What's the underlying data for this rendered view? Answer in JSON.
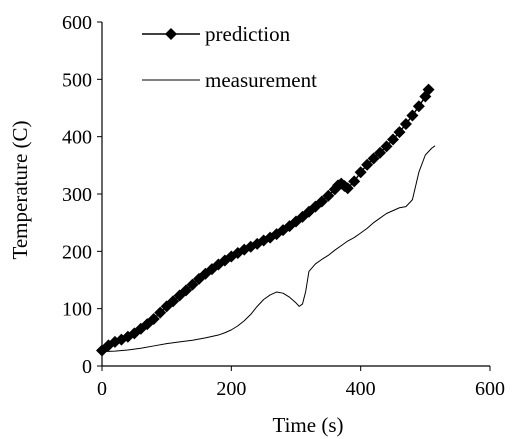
{
  "chart_data": {
    "type": "line",
    "title": "",
    "xlabel": "Time (s)",
    "ylabel": "Temperature (C)",
    "xlim": [
      0,
      600
    ],
    "ylim": [
      0,
      600
    ],
    "xticks": [
      0,
      200,
      400,
      600
    ],
    "yticks": [
      0,
      100,
      200,
      300,
      400,
      500,
      600
    ],
    "grid": false,
    "legend_position": "top-left",
    "series": [
      {
        "name": "prediction",
        "marker": "diamond",
        "color": "#000000",
        "x": [
          0,
          10,
          20,
          30,
          40,
          50,
          60,
          70,
          80,
          90,
          100,
          110,
          120,
          130,
          140,
          150,
          160,
          170,
          180,
          190,
          200,
          210,
          220,
          230,
          240,
          250,
          260,
          270,
          280,
          290,
          300,
          310,
          320,
          330,
          340,
          350,
          360,
          365,
          370,
          375,
          380,
          390,
          400,
          410,
          420,
          430,
          440,
          450,
          460,
          470,
          480,
          490,
          500,
          505
        ],
        "y": [
          27,
          36,
          42,
          46,
          51,
          57,
          65,
          73,
          82,
          93,
          104,
          113,
          123,
          132,
          142,
          152,
          161,
          169,
          177,
          184,
          191,
          197,
          203,
          208,
          213,
          219,
          224,
          230,
          237,
          244,
          252,
          260,
          269,
          278,
          287,
          297,
          308,
          315,
          318,
          314,
          310,
          322,
          338,
          351,
          362,
          372,
          383,
          395,
          408,
          422,
          437,
          453,
          470,
          482
        ]
      },
      {
        "name": "measurement",
        "marker": "none",
        "color": "#000000",
        "x": [
          0,
          20,
          40,
          60,
          80,
          100,
          120,
          140,
          160,
          180,
          190,
          200,
          210,
          220,
          230,
          240,
          250,
          260,
          270,
          280,
          290,
          300,
          305,
          310,
          315,
          320,
          330,
          340,
          350,
          360,
          370,
          380,
          390,
          400,
          410,
          420,
          430,
          440,
          450,
          460,
          470,
          480,
          490,
          500,
          510,
          515
        ],
        "y": [
          25,
          26,
          28,
          31,
          35,
          39,
          42,
          45,
          49,
          54,
          58,
          63,
          70,
          79,
          90,
          104,
          116,
          124,
          129,
          127,
          120,
          110,
          104,
          108,
          130,
          165,
          178,
          186,
          193,
          202,
          210,
          218,
          224,
          232,
          240,
          250,
          258,
          266,
          271,
          276,
          278,
          290,
          338,
          368,
          380,
          384
        ]
      }
    ]
  }
}
